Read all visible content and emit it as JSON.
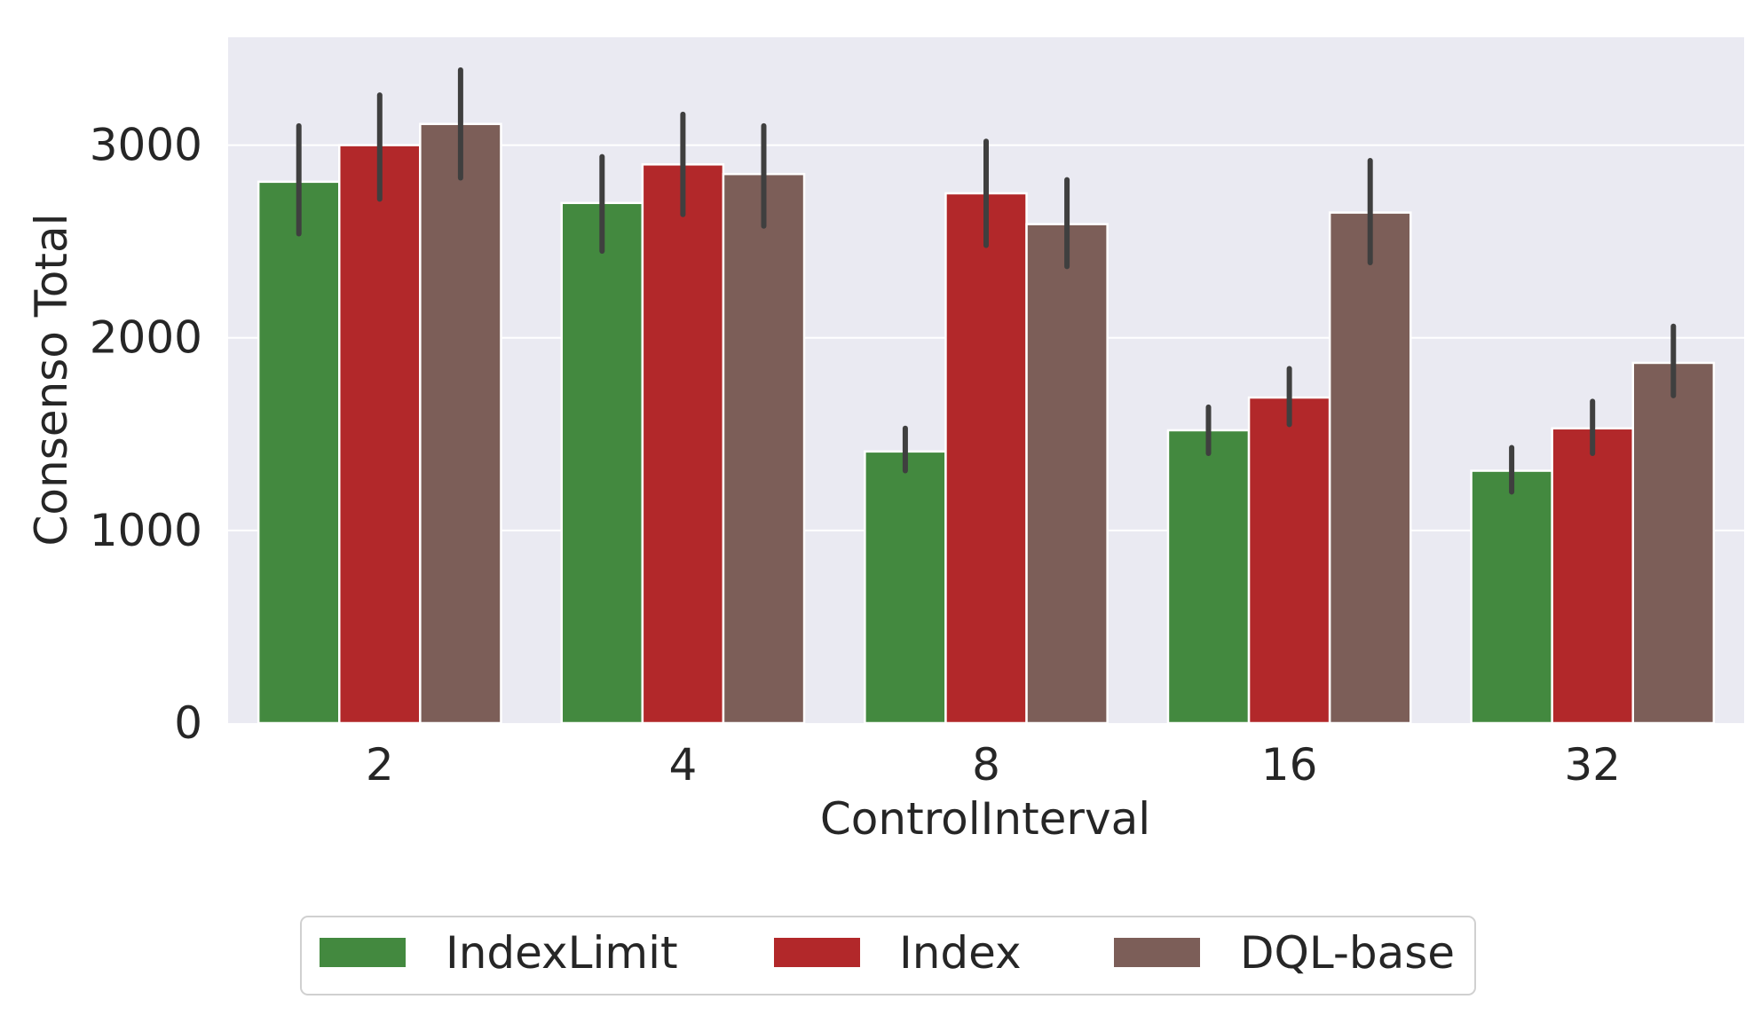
{
  "chart_data": {
    "type": "bar",
    "xlabel": "ControlInterval",
    "ylabel": "Consenso Total",
    "categories": [
      "2",
      "4",
      "8",
      "16",
      "32"
    ],
    "series": [
      {
        "name": "IndexLimit",
        "color": "#43893f",
        "values": [
          2810,
          2700,
          1410,
          1520,
          1310
        ],
        "error_low": [
          2540,
          2450,
          1310,
          1400,
          1200
        ],
        "error_high": [
          3100,
          2940,
          1530,
          1640,
          1430
        ]
      },
      {
        "name": "Index",
        "color": "#b2282a",
        "values": [
          3000,
          2900,
          2750,
          1690,
          1530
        ],
        "error_low": [
          2720,
          2640,
          2480,
          1550,
          1400
        ],
        "error_high": [
          3260,
          3160,
          3020,
          1840,
          1670
        ]
      },
      {
        "name": "DQL-base",
        "color": "#7c5e58",
        "values": [
          3110,
          2850,
          2590,
          2650,
          1870
        ],
        "error_low": [
          2830,
          2580,
          2370,
          2390,
          1700
        ],
        "error_high": [
          3390,
          3100,
          2820,
          2920,
          2060
        ]
      }
    ],
    "yticks": [
      0,
      1000,
      2000,
      3000
    ],
    "ylim": [
      0,
      3560
    ],
    "grid": true,
    "legend_position": "bottom"
  }
}
